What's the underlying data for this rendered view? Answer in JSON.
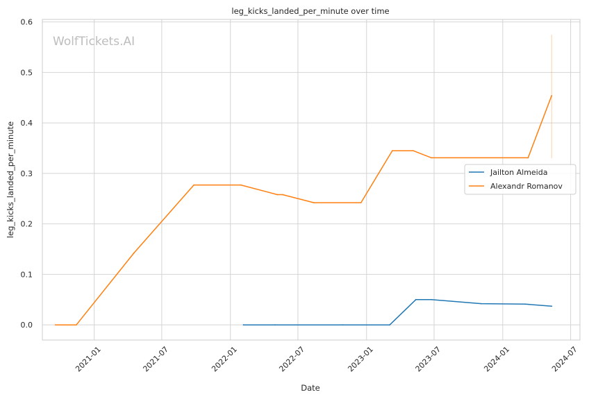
{
  "chart_data": {
    "type": "line",
    "title": "leg_kicks_landed_per_minute over time",
    "xlabel": "Date",
    "ylabel": "leg_kicks_landed_per_minute",
    "watermark": "WolfTickets.AI",
    "x_range": [
      "2020-08-15",
      "2024-07-26"
    ],
    "ylim": [
      -0.03,
      0.605
    ],
    "x_ticks": [
      "2021-01",
      "2021-07",
      "2022-01",
      "2022-07",
      "2023-01",
      "2023-07",
      "2024-01",
      "2024-07"
    ],
    "y_ticks": [
      0.0,
      0.1,
      0.2,
      0.3,
      0.4,
      0.5,
      0.6
    ],
    "grid": true,
    "legend_position": "center-right",
    "series": [
      {
        "name": "Jailton Almeida",
        "color": "#1f77b4",
        "points": [
          [
            "2022-02-05",
            0.0
          ],
          [
            "2022-05-01",
            0.0
          ],
          [
            "2022-10-29",
            0.0
          ],
          [
            "2023-03-04",
            0.0
          ],
          [
            "2023-05-13",
            0.05
          ],
          [
            "2023-06-24",
            0.05
          ],
          [
            "2023-11-04",
            0.042
          ],
          [
            "2024-03-02",
            0.041
          ],
          [
            "2024-05-11",
            0.037
          ]
        ]
      },
      {
        "name": "Alexandr Romanov",
        "color": "#ff7f0e",
        "points": [
          [
            "2020-09-19",
            0.0
          ],
          [
            "2020-11-14",
            0.0
          ],
          [
            "2021-04-17",
            0.142
          ],
          [
            "2021-09-25",
            0.277
          ],
          [
            "2022-01-29",
            0.277
          ],
          [
            "2022-05-07",
            0.258
          ],
          [
            "2022-05-21",
            0.258
          ],
          [
            "2022-08-13",
            0.242
          ],
          [
            "2022-12-17",
            0.242
          ],
          [
            "2023-03-11",
            0.345
          ],
          [
            "2023-05-06",
            0.345
          ],
          [
            "2023-06-24",
            0.331
          ],
          [
            "2024-03-09",
            0.331
          ],
          [
            "2024-05-11",
            0.454
          ]
        ],
        "error_bar": {
          "x": "2024-05-11",
          "y_low": 0.33,
          "y_high": 0.575
        }
      }
    ]
  }
}
